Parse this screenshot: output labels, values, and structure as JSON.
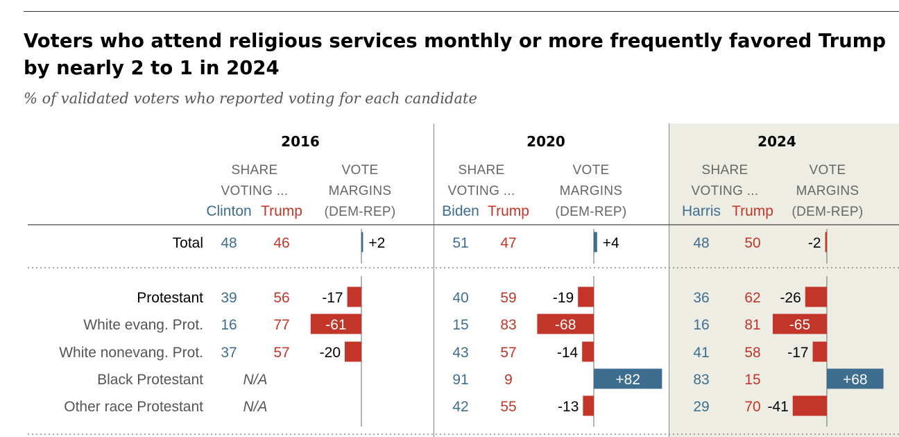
{
  "title": "Voters who attend religious services monthly or more frequently favored Trump by nearly 2 to 1 in 2024",
  "subtitle": "% of validated voters who reported voting for each candidate",
  "header": {
    "share_line1": "SHARE",
    "share_line2": "VOTING ...",
    "margin_line1": "VOTE",
    "margin_line2": "MARGINS",
    "margin_line3": "(DEM-REP)"
  },
  "colors": {
    "dem": "#3d6d8f",
    "rep": "#c33529",
    "highlight_panel": "#eeede3",
    "axis": "#666666"
  },
  "chart_data": {
    "type": "table",
    "title": "Voters who attend religious services monthly or more frequently favored Trump by nearly 2 to 1 in 2024",
    "subtitle": "% of validated voters who reported voting for each candidate",
    "years": [
      {
        "year": "2016",
        "dem": "Clinton",
        "rep": "Trump",
        "highlight": false
      },
      {
        "year": "2020",
        "dem": "Biden",
        "rep": "Trump",
        "highlight": false
      },
      {
        "year": "2024",
        "dem": "Harris",
        "rep": "Trump",
        "highlight": true
      }
    ],
    "rows": [
      {
        "label": "Total",
        "bold": true,
        "values": [
          {
            "dem": 48,
            "rep": 46,
            "margin": 2,
            "margin_label": "+2"
          },
          {
            "dem": 51,
            "rep": 47,
            "margin": 4,
            "margin_label": "+4"
          },
          {
            "dem": 48,
            "rep": 50,
            "margin": -2,
            "margin_label": "-2"
          }
        ]
      },
      {
        "label": "Protestant",
        "bold": true,
        "values": [
          {
            "dem": 39,
            "rep": 56,
            "margin": -17,
            "margin_label": "-17"
          },
          {
            "dem": 40,
            "rep": 59,
            "margin": -19,
            "margin_label": "-19"
          },
          {
            "dem": 36,
            "rep": 62,
            "margin": -26,
            "margin_label": "-26"
          }
        ]
      },
      {
        "label": "White evang. Prot.",
        "bold": false,
        "values": [
          {
            "dem": 16,
            "rep": 77,
            "margin": -61,
            "margin_label": "-61"
          },
          {
            "dem": 15,
            "rep": 83,
            "margin": -68,
            "margin_label": "-68"
          },
          {
            "dem": 16,
            "rep": 81,
            "margin": -65,
            "margin_label": "-65"
          }
        ]
      },
      {
        "label": "White nonevang. Prot.",
        "bold": false,
        "values": [
          {
            "dem": 37,
            "rep": 57,
            "margin": -20,
            "margin_label": "-20"
          },
          {
            "dem": 43,
            "rep": 57,
            "margin": -14,
            "margin_label": "-14"
          },
          {
            "dem": 41,
            "rep": 58,
            "margin": -17,
            "margin_label": "-17"
          }
        ]
      },
      {
        "label": "Black Protestant",
        "bold": false,
        "values": [
          {
            "na": true,
            "na_label": "N/A"
          },
          {
            "dem": 91,
            "rep": 9,
            "margin": 82,
            "margin_label": "+82"
          },
          {
            "dem": 83,
            "rep": 15,
            "margin": 68,
            "margin_label": "+68"
          }
        ]
      },
      {
        "label": "Other race Protestant",
        "bold": false,
        "values": [
          {
            "na": true,
            "na_label": "N/A"
          },
          {
            "dem": 42,
            "rep": 55,
            "margin": -13,
            "margin_label": "-13"
          },
          {
            "dem": 29,
            "rep": 70,
            "margin": -41,
            "margin_label": "-41"
          }
        ]
      }
    ]
  }
}
